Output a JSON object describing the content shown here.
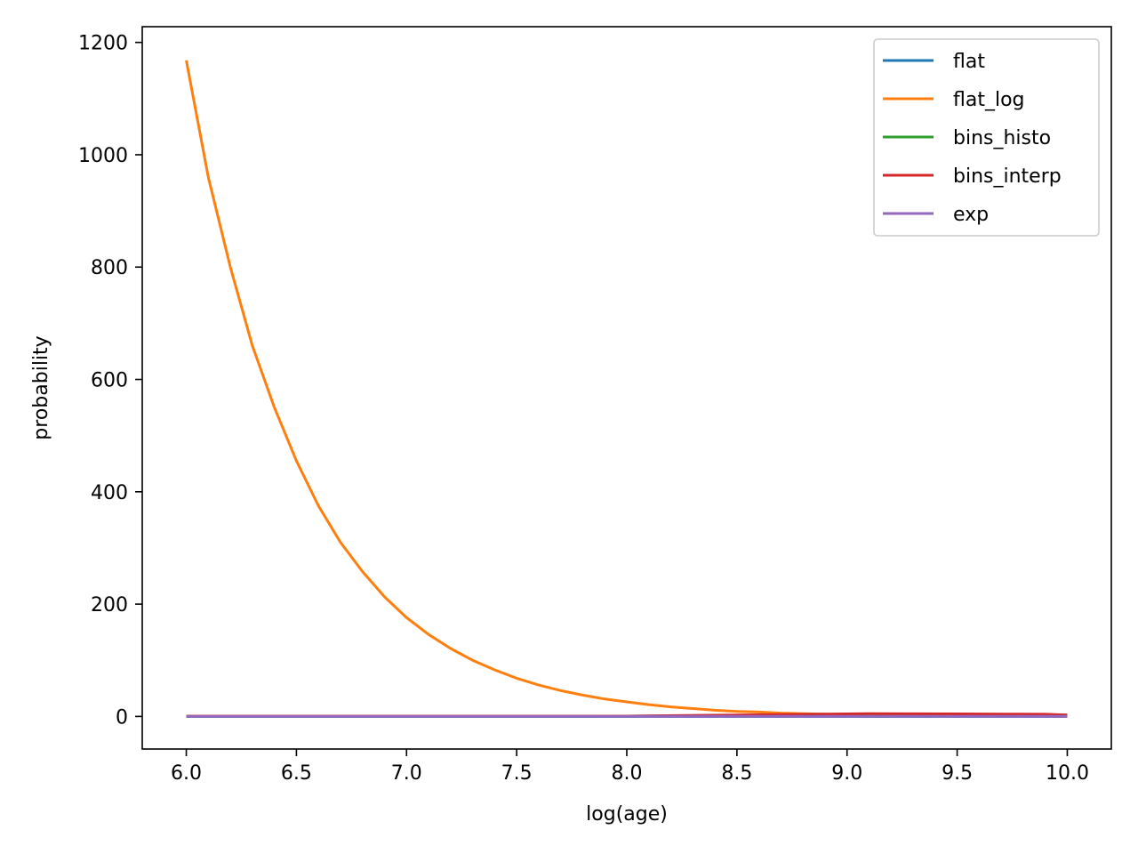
{
  "chart_data": {
    "type": "line",
    "title": "",
    "xlabel": "log(age)",
    "ylabel": "probability",
    "xlim": [
      5.8,
      10.2
    ],
    "ylim": [
      -58,
      1228
    ],
    "xticks": [
      6.0,
      6.5,
      7.0,
      7.5,
      8.0,
      8.5,
      9.0,
      9.5,
      10.0
    ],
    "xtick_labels": [
      "6.0",
      "6.5",
      "7.0",
      "7.5",
      "8.0",
      "8.5",
      "9.0",
      "9.5",
      "10.0"
    ],
    "yticks": [
      0,
      200,
      400,
      600,
      800,
      1000,
      1200
    ],
    "ytick_labels": [
      "0",
      "200",
      "400",
      "600",
      "800",
      "1000",
      "1200"
    ],
    "grid": false,
    "legend": "upper-right",
    "series": [
      {
        "name": "flat",
        "color": "#1f77b4",
        "x": [
          6.0,
          6.5,
          7.0,
          7.5,
          8.0,
          8.5,
          9.0,
          9.5,
          10.0
        ],
        "y": [
          0.0,
          0.0,
          0.0,
          0.0,
          0.0,
          0.0,
          0.0,
          0.0,
          0.0
        ]
      },
      {
        "name": "flat_log",
        "color": "#ff7f0e",
        "x": [
          6.0,
          6.1,
          6.2,
          6.3,
          6.4,
          6.5,
          6.6,
          6.7,
          6.8,
          6.9,
          7.0,
          7.1,
          7.2,
          7.3,
          7.4,
          7.5,
          7.6,
          7.7,
          7.8,
          7.9,
          8.0,
          8.1,
          8.2,
          8.3,
          8.4,
          8.5,
          8.6,
          8.7,
          8.8,
          8.9,
          9.0,
          9.1,
          9.2,
          9.3,
          9.4,
          9.5,
          9.6,
          9.7,
          9.8,
          9.9,
          10.0
        ],
        "y": [
          1168,
          960,
          800,
          660,
          550,
          455,
          375,
          310,
          258,
          213,
          176,
          146,
          121,
          100,
          83,
          68,
          56,
          46,
          38,
          31,
          26,
          21,
          17,
          14,
          11,
          9,
          8,
          6,
          5,
          4,
          3,
          3,
          2,
          2,
          1.5,
          1.2,
          1,
          0.8,
          0.6,
          0.5,
          0.4
        ]
      },
      {
        "name": "bins_histo",
        "color": "#2ca02c",
        "x": [
          6.0,
          7.0,
          8.0,
          8.5,
          9.0,
          9.5,
          10.0
        ],
        "y": [
          0.4,
          0.4,
          0.5,
          2.0,
          4.0,
          3.5,
          2.5
        ]
      },
      {
        "name": "bins_interp",
        "color": "#d62728",
        "x": [
          6.0,
          6.5,
          7.0,
          7.5,
          8.0,
          8.5,
          8.8,
          9.0,
          9.1,
          9.3,
          9.5,
          9.7,
          9.9,
          10.0
        ],
        "y": [
          0.5,
          0.5,
          0.5,
          0.6,
          0.7,
          2.5,
          3.8,
          4.6,
          5.0,
          4.8,
          4.5,
          4.2,
          4.0,
          2.5
        ]
      },
      {
        "name": "exp",
        "color": "#9467bd",
        "x": [
          6.0,
          6.5,
          7.0,
          7.5,
          8.0,
          8.5,
          9.0,
          9.5,
          10.0
        ],
        "y": [
          0.1,
          0.1,
          0.1,
          0.1,
          0.1,
          0.1,
          0.1,
          0.1,
          0.1
        ]
      }
    ]
  }
}
